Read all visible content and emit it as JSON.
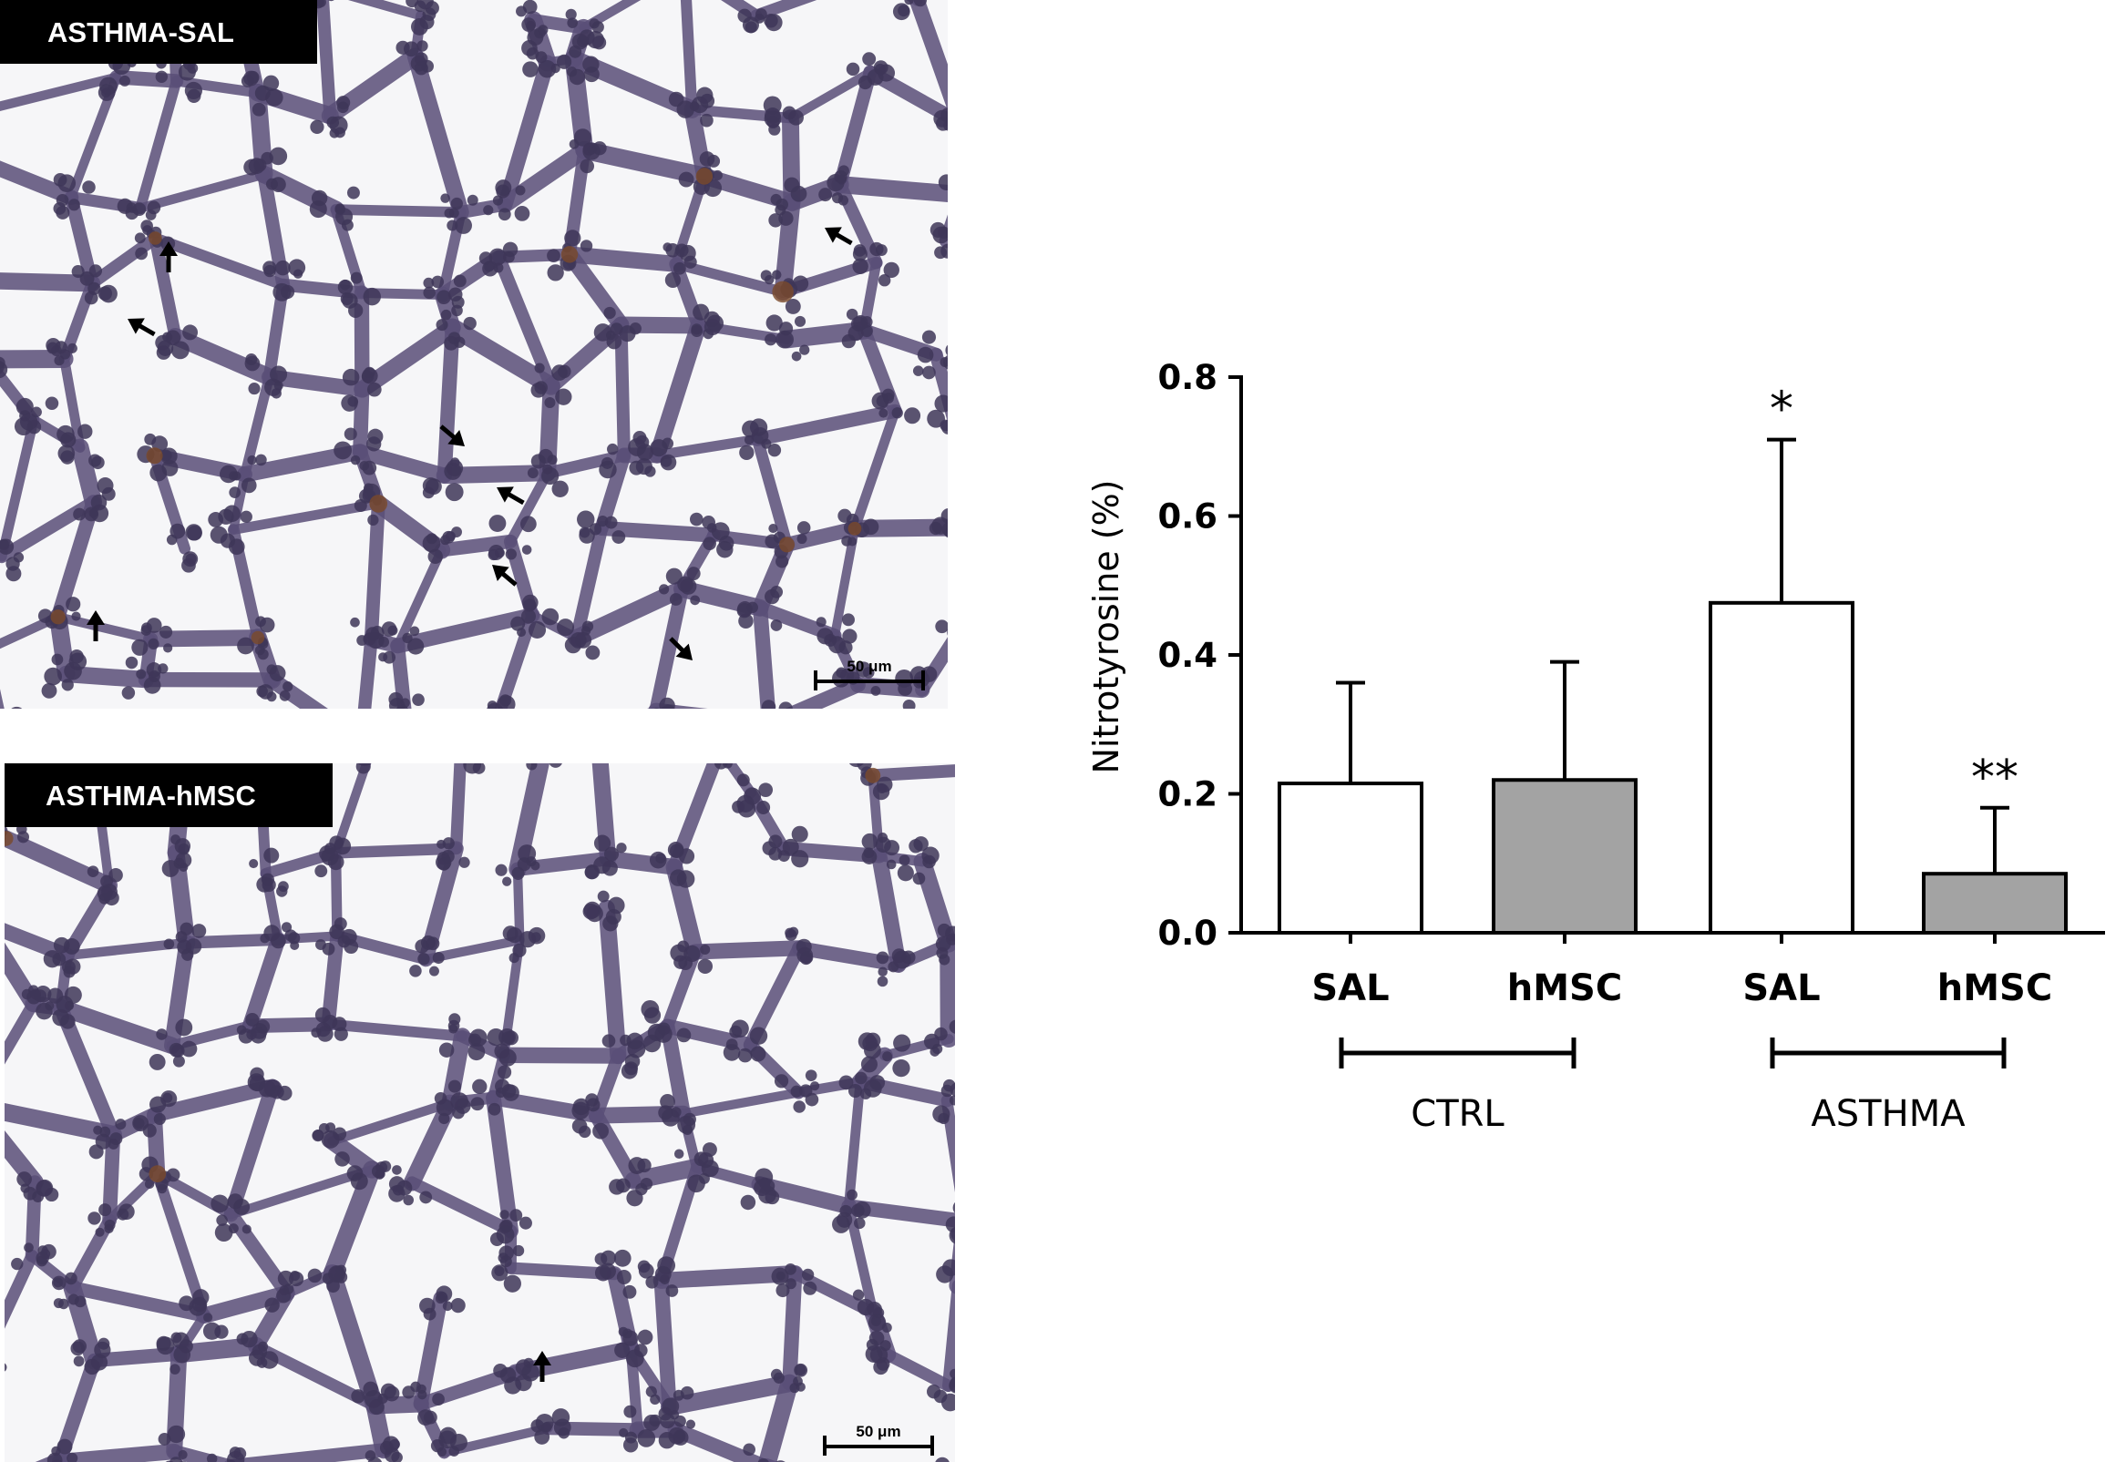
{
  "panels": [
    {
      "label": "ASTHMA-SAL",
      "scale_bar": "50 μm"
    },
    {
      "label": "ASTHMA-hMSC",
      "scale_bar": "50 μm"
    }
  ],
  "colors": {
    "tissue": "#5a4f78",
    "tissue_dark": "#3e3658",
    "stain_brown": "#7a4a2a",
    "background": "#f6f6f8",
    "bar_saline": "#ffffff",
    "bar_hmsc": "#a3a3a3"
  },
  "chart_data": {
    "type": "bar",
    "ylabel": "Nitrotyrosine  (%)",
    "ylim": [
      0,
      0.8
    ],
    "yticks": [
      "0.0",
      "0.2",
      "0.4",
      "0.6",
      "0.8"
    ],
    "categories": [
      "SAL",
      "hMSC",
      "SAL",
      "hMSC"
    ],
    "groups": [
      {
        "label": "CTRL",
        "members": [
          0,
          1
        ]
      },
      {
        "label": "ASTHMA",
        "members": [
          2,
          3
        ]
      }
    ],
    "values": [
      0.215,
      0.22,
      0.475,
      0.085
    ],
    "errors": [
      0.145,
      0.17,
      0.235,
      0.095
    ],
    "fill": [
      "white",
      "gray",
      "white",
      "gray"
    ],
    "annotations": [
      "",
      "",
      "*",
      "**"
    ]
  }
}
